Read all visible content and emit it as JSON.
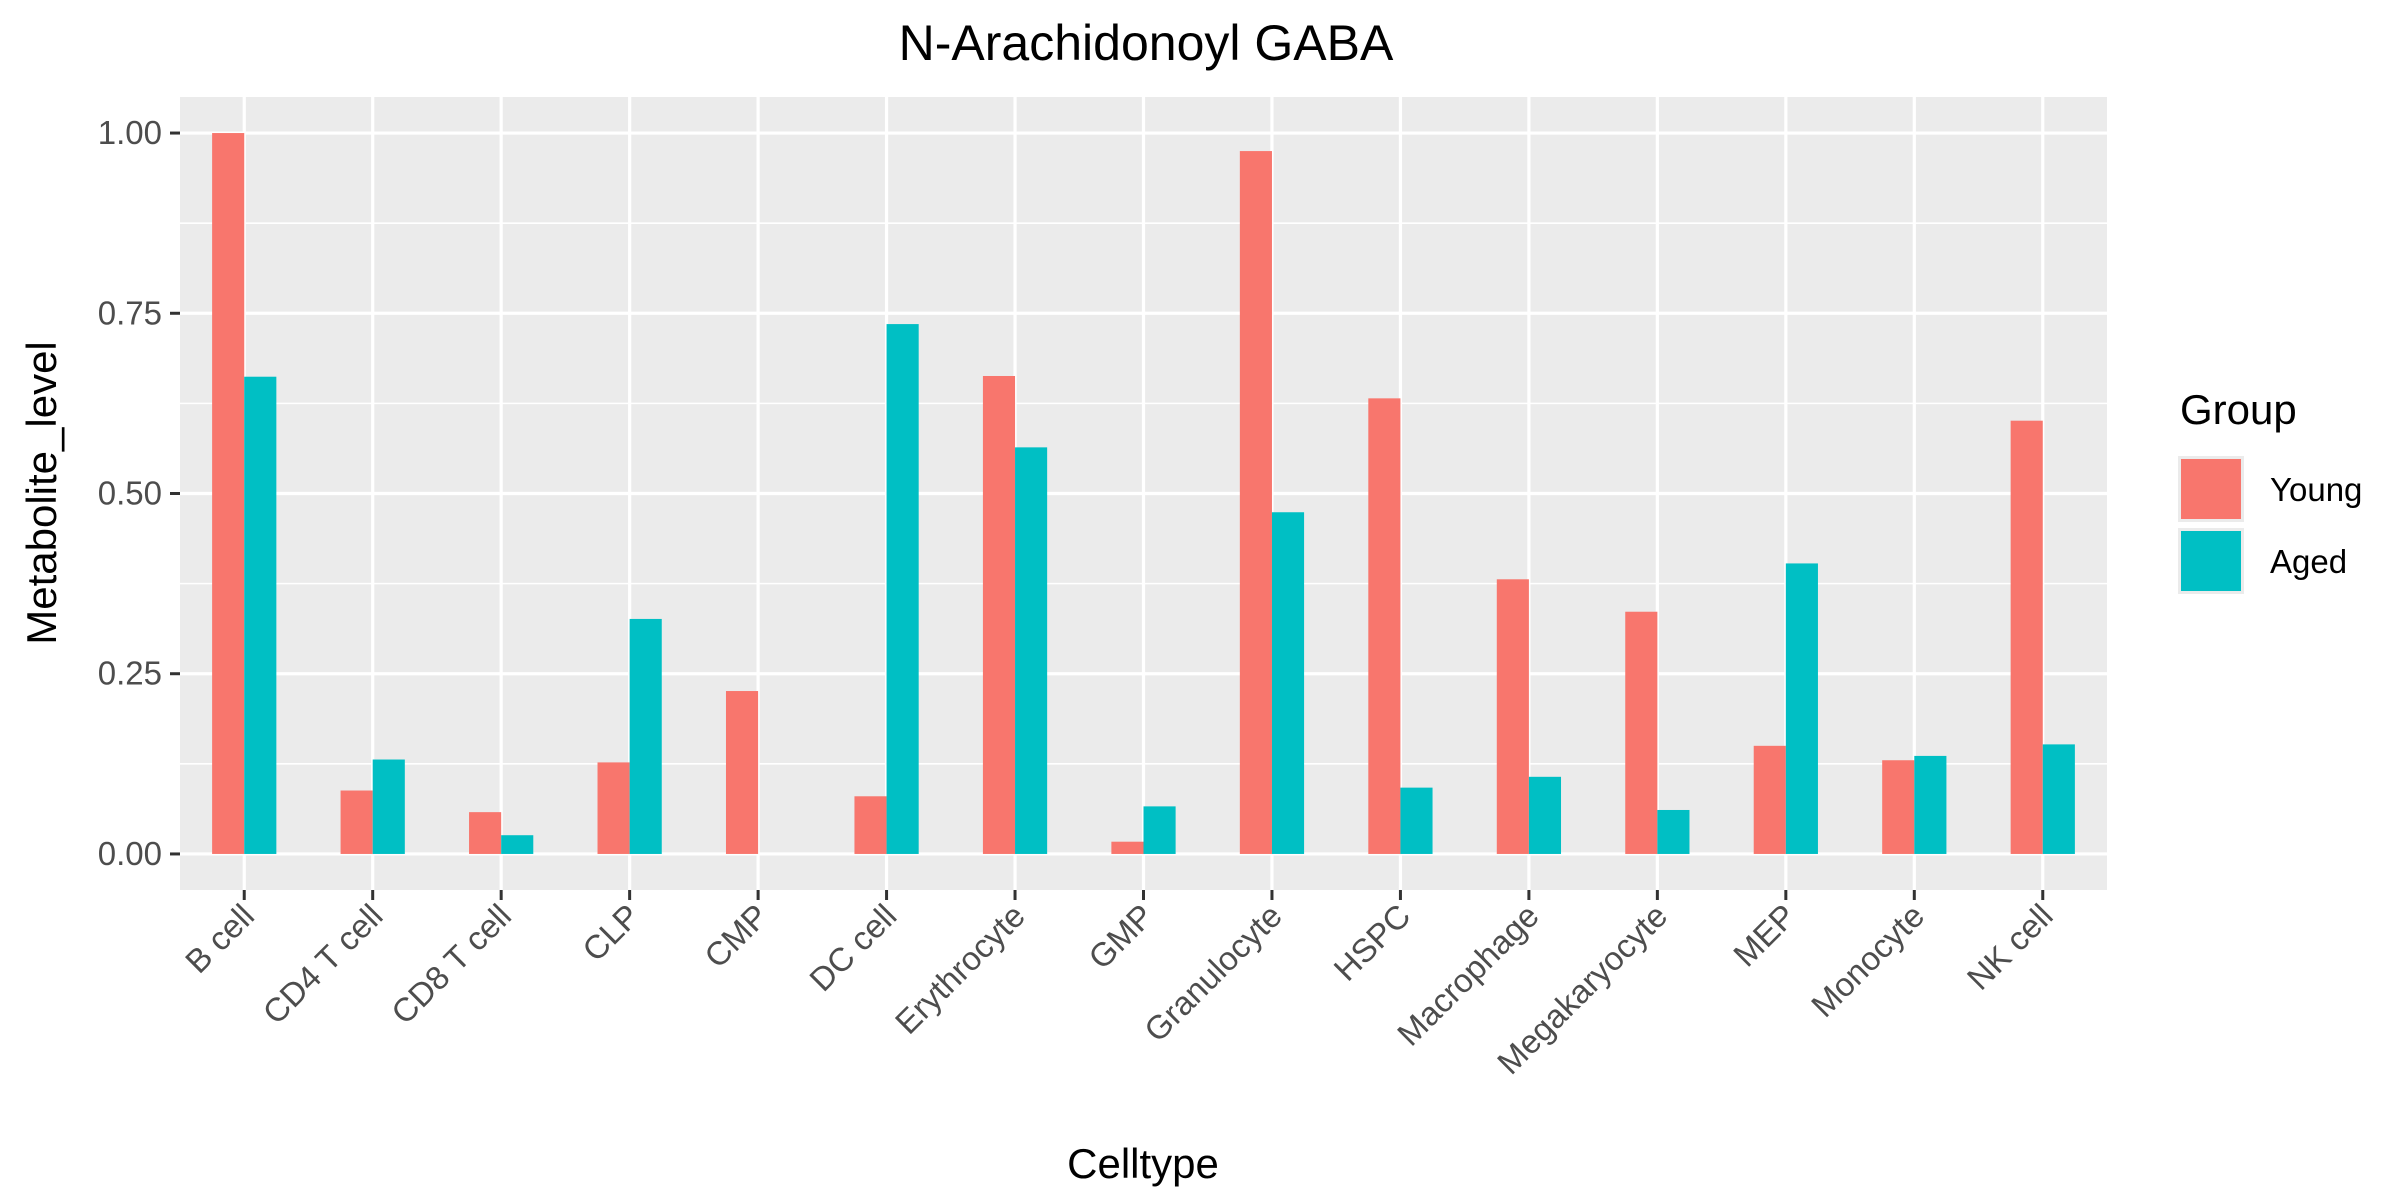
{
  "chart_data": {
    "type": "bar",
    "title": "N-Arachidonoyl GABA",
    "xlabel": "Celltype",
    "ylabel": "Metabolite_level",
    "ylim": [
      -0.05,
      1.05
    ],
    "yticks": [
      0.0,
      0.25,
      0.5,
      0.75,
      1.0
    ],
    "ytick_labels": [
      "0.00",
      "0.25",
      "0.50",
      "0.75",
      "1.00"
    ],
    "grid": true,
    "legend_position": "right",
    "legend_title": "Group",
    "categories": [
      "B cell",
      "CD4 T cell",
      "CD8 T cell",
      "CLP",
      "CMP",
      "DC cell",
      "Erythrocyte",
      "GMP",
      "Granulocyte",
      "HSPC",
      "Macrophage",
      "Megakaryocyte",
      "MEP",
      "Monocyte",
      "NK cell"
    ],
    "series": [
      {
        "name": "Young",
        "color": "#F8766D",
        "values": [
          1.0,
          0.088,
          0.058,
          0.127,
          0.226,
          0.08,
          0.663,
          0.017,
          0.975,
          0.632,
          0.381,
          0.336,
          0.15,
          0.13,
          0.601
        ]
      },
      {
        "name": "Aged",
        "color": "#00BFC4",
        "values": [
          0.662,
          0.131,
          0.026,
          0.326,
          0.0,
          0.735,
          0.564,
          0.066,
          0.474,
          0.092,
          0.107,
          0.061,
          0.403,
          0.136,
          0.152
        ]
      }
    ]
  }
}
